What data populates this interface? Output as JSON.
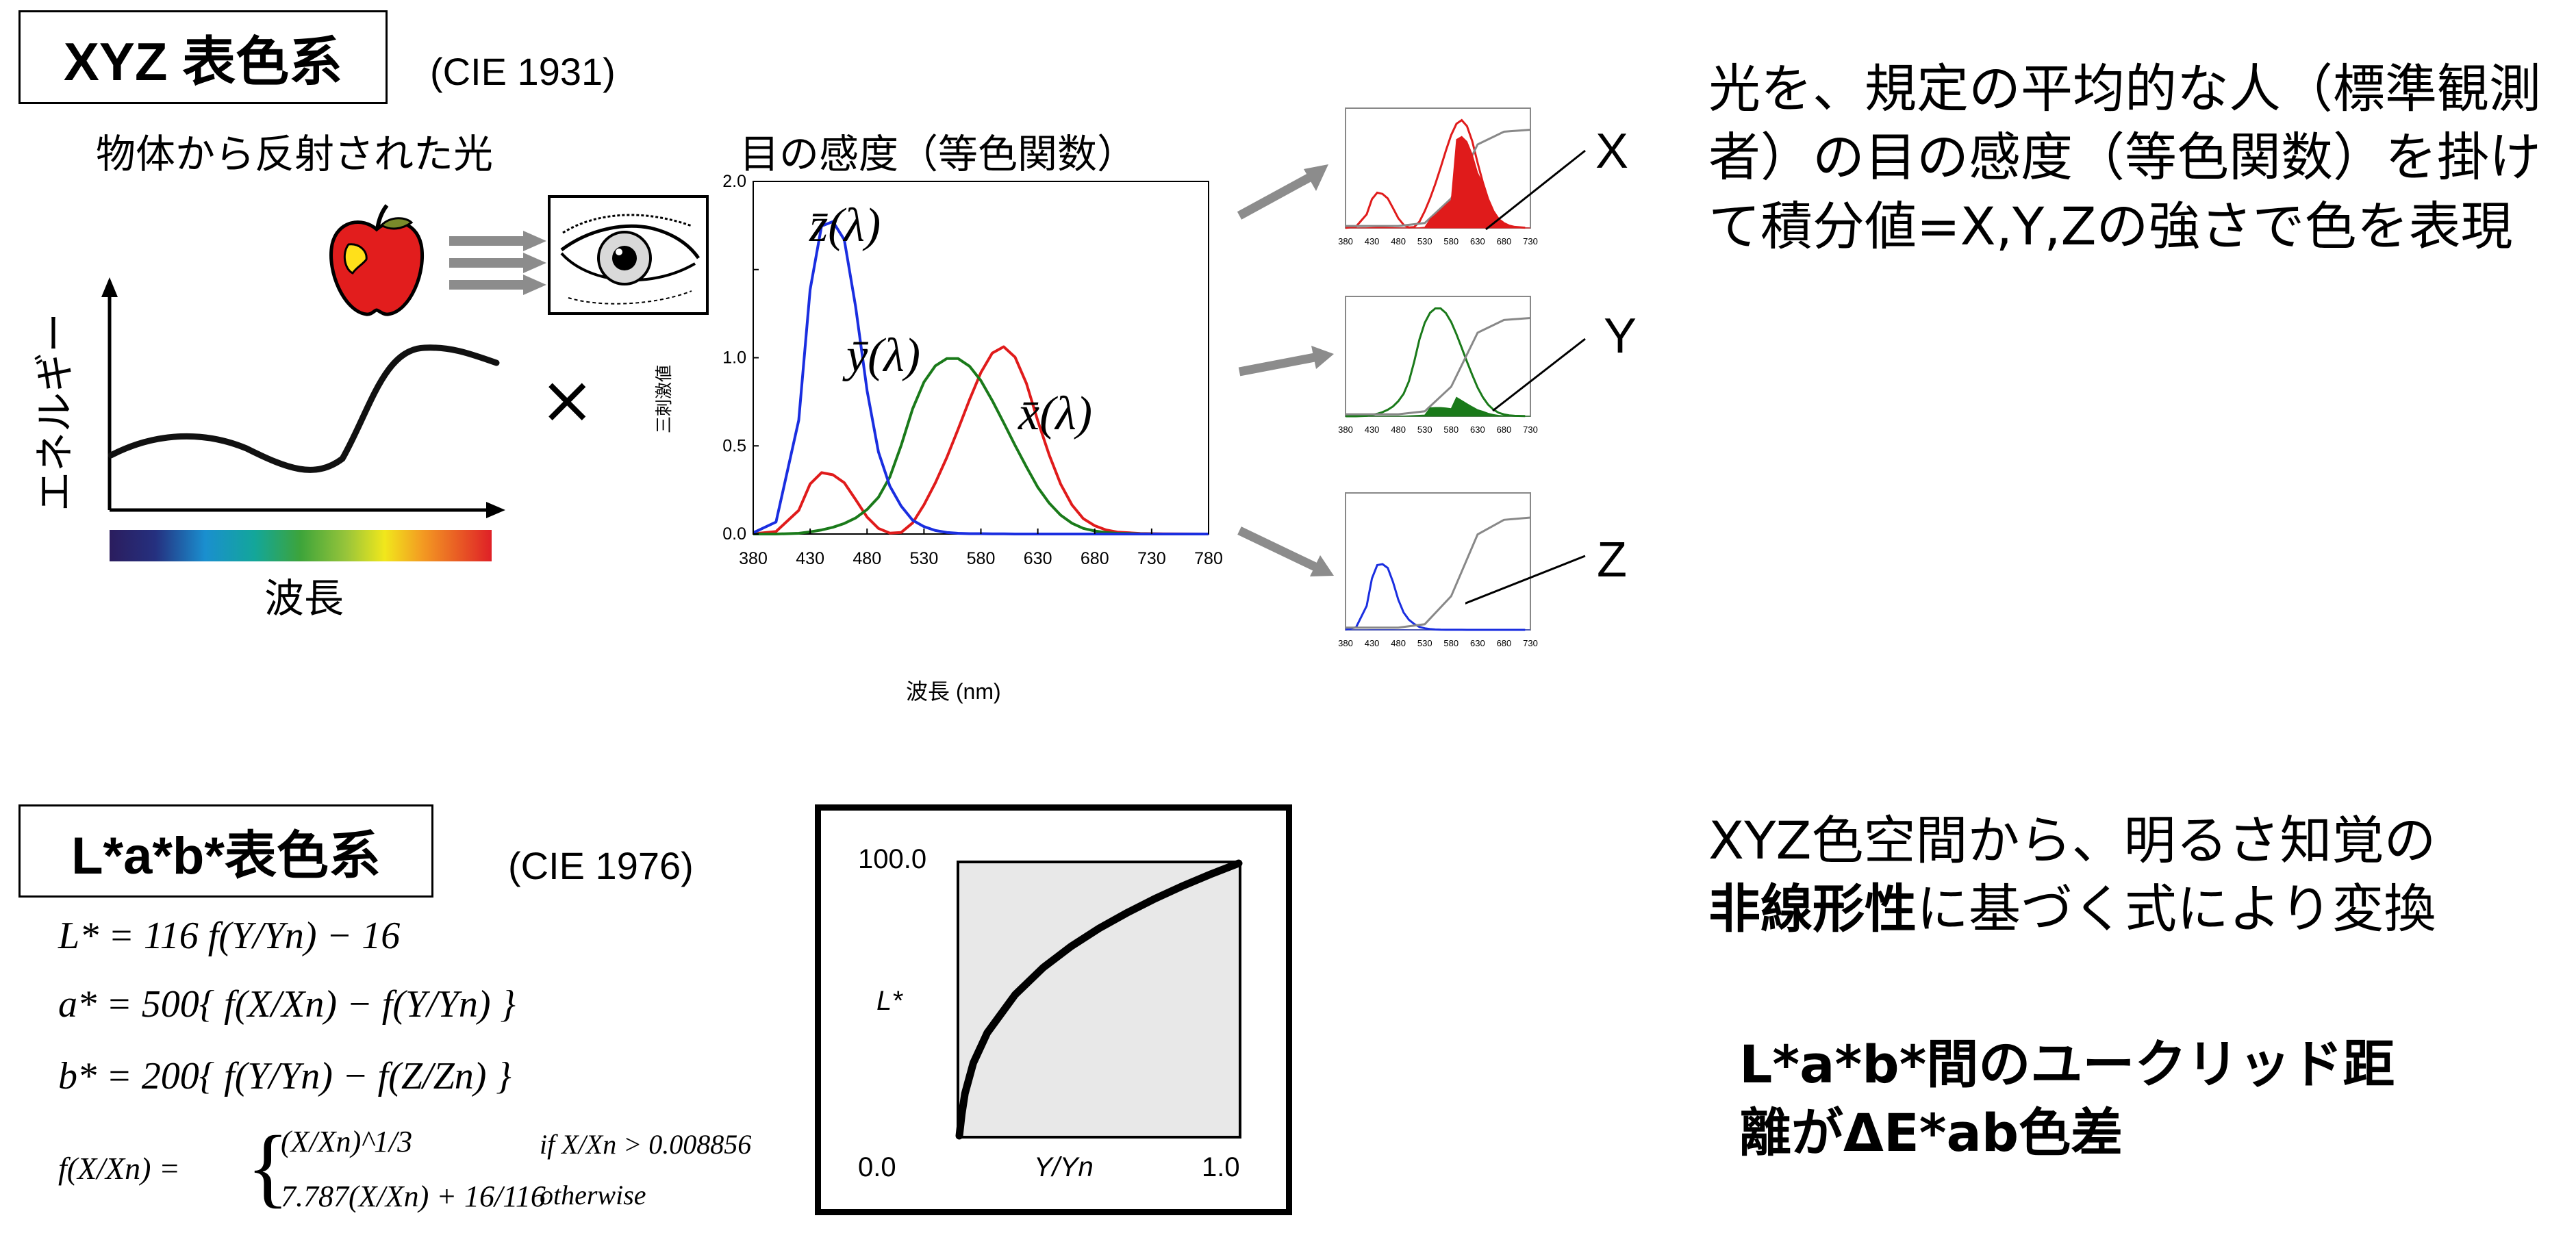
{
  "xyz": {
    "title": "XYZ 表色系",
    "cie": "(CIE 1931)",
    "reflected_light": "物体から反射された光",
    "energy_axis": "エネルギー",
    "wavelength": "波長",
    "multiply": "×",
    "sens_title": "目の感度（等色関数）",
    "tristimulus_ylabel": "三刺激値",
    "xlabel": "波長 (nm)",
    "curve_labels": {
      "z": "z̄(λ)",
      "y": "ȳ(λ)",
      "x": "x̄(λ)"
    },
    "outputs": [
      "X",
      "Y",
      "Z"
    ],
    "description": "光を、規定の平均的な人（標準観測者）の目の感度（等色関数）を掛けて積分値=X,Y,Zの強さで色を表現"
  },
  "lab": {
    "title": "L*a*b*表色系",
    "cie": "(CIE 1976)",
    "formulas": {
      "L": "L* = 116 f(Y/Yn) − 16",
      "a": "a* = 500{ f(X/Xn) − f(Y/Yn) }",
      "b": "b* = 200{ f(Y/Yn) − f(Z/Zn) }",
      "f_lhs": "f(X/Xn) =",
      "f_case1": "(X/Xn)^1/3",
      "f_case1_cond": "if   X/Xn > 0.008856",
      "f_case2": "7.787(X/Xn) + 16/116",
      "f_case2_cond": "otherwise"
    },
    "graph": {
      "y_top": "100.0",
      "y_bottom": "0.0",
      "ylabel": "L*",
      "xlabel": "Y/Yn",
      "x_right": "1.0"
    },
    "desc1_plain": "XYZ色空間から、明るさ知覚の",
    "desc1_bold": "非線形性",
    "desc1_rest": "に基づく式により変換",
    "desc2": "L*a*b*間のユークリッド距離がΔE*ab色差"
  },
  "chart_data": [
    {
      "type": "line",
      "title": "目の感度（等色関数）",
      "xlabel": "波長 (nm)",
      "ylabel": "三刺激値",
      "xlim": [
        380,
        780
      ],
      "ylim": [
        0,
        2.0
      ],
      "x_ticks": [
        380,
        430,
        480,
        530,
        580,
        630,
        680,
        730,
        780
      ],
      "y_ticks": [
        0.0,
        0.5,
        1.0,
        1.5,
        2.0
      ],
      "y_tick_labels": [
        "0.0",
        "0.5",
        "1.0",
        "",
        "2.0"
      ],
      "x": [
        380,
        400,
        420,
        430,
        440,
        450,
        460,
        470,
        480,
        490,
        500,
        510,
        520,
        530,
        540,
        550,
        560,
        570,
        580,
        590,
        600,
        610,
        620,
        630,
        640,
        650,
        660,
        670,
        680,
        690,
        700,
        720,
        740,
        780
      ],
      "series": [
        {
          "name": "x̄(λ)",
          "color": "#e01b1b",
          "values": [
            0.001,
            0.014,
            0.134,
            0.284,
            0.348,
            0.336,
            0.291,
            0.195,
            0.096,
            0.032,
            0.005,
            0.009,
            0.063,
            0.166,
            0.29,
            0.433,
            0.595,
            0.762,
            0.916,
            1.026,
            1.062,
            1.003,
            0.854,
            0.642,
            0.448,
            0.284,
            0.165,
            0.087,
            0.047,
            0.023,
            0.011,
            0.003,
            0.001,
            0.0
          ]
        },
        {
          "name": "ȳ(λ)",
          "color": "#1a7a1a",
          "values": [
            0.0,
            0.0,
            0.004,
            0.012,
            0.023,
            0.038,
            0.06,
            0.091,
            0.139,
            0.208,
            0.323,
            0.503,
            0.71,
            0.862,
            0.954,
            0.995,
            0.995,
            0.952,
            0.87,
            0.757,
            0.631,
            0.503,
            0.381,
            0.265,
            0.175,
            0.107,
            0.061,
            0.032,
            0.017,
            0.008,
            0.004,
            0.001,
            0.0,
            0.0
          ]
        },
        {
          "name": "z̄(λ)",
          "color": "#1a2ee0",
          "values": [
            0.007,
            0.068,
            0.646,
            1.386,
            1.747,
            1.772,
            1.669,
            1.288,
            0.813,
            0.465,
            0.272,
            0.158,
            0.078,
            0.042,
            0.02,
            0.009,
            0.004,
            0.002,
            0.002,
            0.001,
            0.001,
            0.0,
            0.0,
            0.0,
            0.0,
            0.0,
            0.0,
            0.0,
            0.0,
            0.0,
            0.0,
            0.0,
            0.0,
            0.0
          ]
        }
      ]
    },
    {
      "type": "line",
      "ylabel": "L*",
      "xlabel": "Y/Yn",
      "xlim": [
        0.0,
        1.0
      ],
      "ylim": [
        0.0,
        100.0
      ],
      "x": [
        0.0,
        0.0089,
        0.02,
        0.05,
        0.1,
        0.2,
        0.3,
        0.4,
        0.5,
        0.6,
        0.7,
        0.8,
        0.9,
        1.0
      ],
      "series": [
        {
          "color": "#000000",
          "values": [
            0.0,
            8.0,
            15.5,
            26.7,
            37.8,
            51.8,
            61.7,
            69.5,
            76.1,
            81.8,
            87.0,
            91.7,
            96.0,
            100.0
          ]
        }
      ]
    }
  ]
}
